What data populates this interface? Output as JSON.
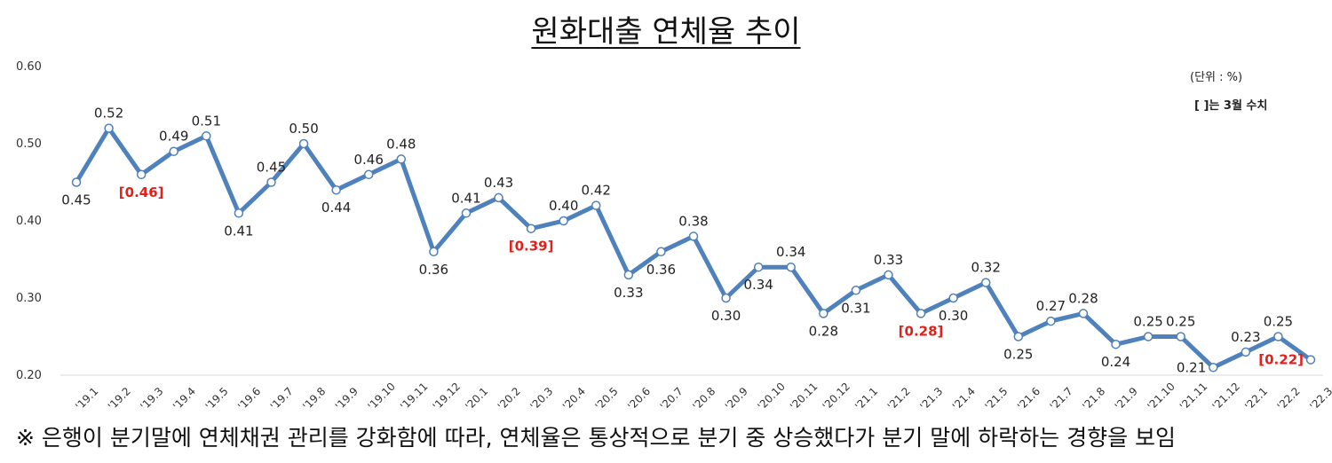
{
  "chart_data": {
    "type": "line",
    "title": "원화대출 연체율 추이",
    "unit_note": "(단위 : %)",
    "bracket_note": "[   ]는 3월 수치",
    "footnote": "※ 은행이 분기말에 연체채권 관리를 강화함에 따라, 연체율은 통상적으로 분기 중 상승했다가 분기 말에 하락하는 경향을 보임",
    "xlabel": "",
    "ylabel": "",
    "ylim": [
      0.2,
      0.6
    ],
    "yticks": [
      "0.20",
      "0.30",
      "0.40",
      "0.50",
      "0.60"
    ],
    "grid": false,
    "categories": [
      "'19.1",
      "'19.2",
      "'19.3",
      "'19.4",
      "'19.5",
      "'19.6",
      "'19.7",
      "'19.8",
      "'19.9",
      "'19.10",
      "'19.11",
      "'19.12",
      "'20.1",
      "'20.2",
      "'20.3",
      "'20.4",
      "'20.5",
      "'20.6",
      "'20.7",
      "'20.8",
      "'20.9",
      "'20.10",
      "'20.11",
      "'20.12",
      "'21.1",
      "'21.2",
      "'21.3",
      "'21.4",
      "'21.5",
      "'21.6",
      "'21.7",
      "'21.8",
      "'21.9",
      "'21.10",
      "'21.11",
      "'21.12",
      "'22.1",
      "'22.2",
      "'22.3"
    ],
    "series": [
      {
        "values": [
          0.45,
          0.52,
          0.46,
          0.49,
          0.51,
          0.41,
          0.45,
          0.5,
          0.44,
          0.46,
          0.48,
          0.36,
          0.41,
          0.43,
          0.39,
          0.4,
          0.42,
          0.33,
          0.36,
          0.38,
          0.3,
          0.34,
          0.34,
          0.28,
          0.31,
          0.33,
          0.28,
          0.3,
          0.32,
          0.25,
          0.27,
          0.28,
          0.24,
          0.25,
          0.25,
          0.21,
          0.23,
          0.25,
          0.22
        ],
        "color": "#4f81bd"
      }
    ],
    "highlighted_march_indices": [
      2,
      14,
      26,
      38
    ],
    "highlight_color": "#e0201b"
  }
}
